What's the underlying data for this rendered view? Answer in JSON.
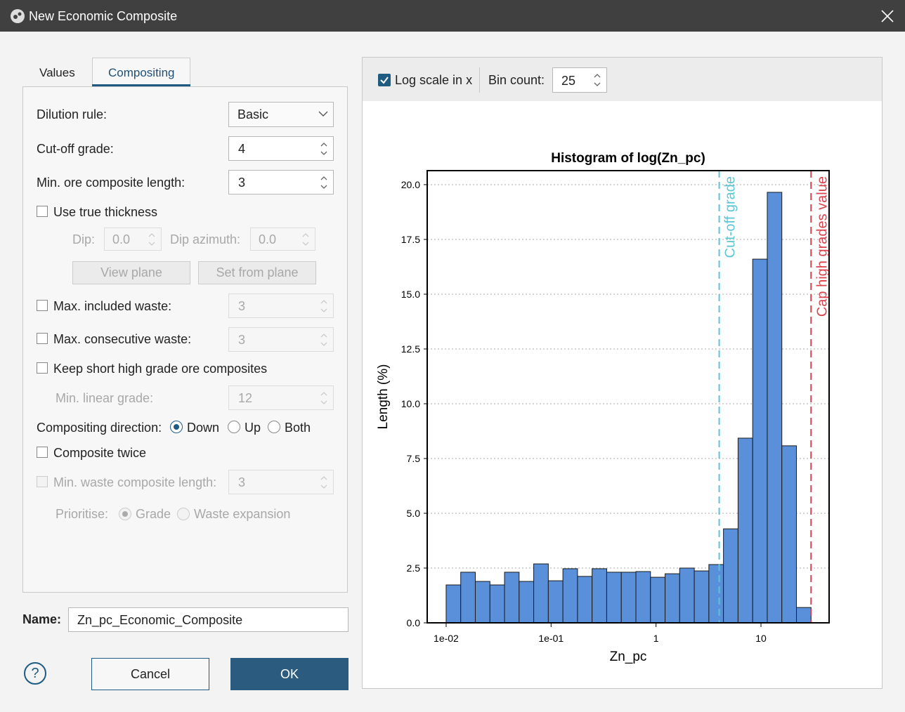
{
  "window": {
    "title": "New Economic Composite"
  },
  "tabs": [
    "Values",
    "Compositing"
  ],
  "form": {
    "dilution_rule": {
      "label": "Dilution rule:",
      "value": "Basic"
    },
    "cutoff_grade": {
      "label": "Cut-off grade:",
      "value": 4
    },
    "min_ore_length": {
      "label": "Min. ore composite length:",
      "value": 3
    },
    "use_true_thickness": {
      "label": "Use true thickness"
    },
    "dip": {
      "label": "Dip:",
      "value": "0.0"
    },
    "dip_azimuth": {
      "label": "Dip azimuth:",
      "value": "0.0"
    },
    "view_plane": "View plane",
    "set_from_plane": "Set from plane",
    "max_included_waste": {
      "label": "Max. included waste:",
      "value": 3
    },
    "max_consecutive_waste": {
      "label": "Max. consecutive waste:",
      "value": 3
    },
    "keep_short": {
      "label": "Keep short high grade ore composites"
    },
    "min_linear_grade": {
      "label": "Min. linear grade:",
      "value": 12
    },
    "direction": {
      "label": "Compositing direction:",
      "options": [
        "Down",
        "Up",
        "Both"
      ]
    },
    "composite_twice": {
      "label": "Composite twice"
    },
    "min_waste_length": {
      "label": "Min. waste composite length:",
      "value": 3
    },
    "prioritise": {
      "label": "Prioritise:",
      "options": [
        "Grade",
        "Waste expansion"
      ]
    }
  },
  "name": {
    "label": "Name:",
    "value": "Zn_pc_Economic_Composite"
  },
  "buttons": {
    "help": "?",
    "cancel": "Cancel",
    "ok": "OK"
  },
  "toolbar": {
    "log_scale": "Log scale in x",
    "bin_count_label": "Bin count:",
    "bin_count": 25
  },
  "chart_data": {
    "type": "histogram",
    "title": "Histogram of log(Zn_pc)",
    "x_label": "Zn_pc",
    "y_label": "Length (%)",
    "log_x": true,
    "bins": [
      0.01,
      0.01377,
      0.01897,
      0.02614,
      0.036,
      0.04959,
      0.0683,
      0.0941,
      0.1296,
      0.1786,
      0.2459,
      0.3388,
      0.4667,
      0.6429,
      0.8855,
      1.22,
      1.68,
      2.314,
      3.188,
      4.391,
      6.049,
      8.333,
      11.48,
      15.81,
      21.78,
      30
    ],
    "values": [
      1.73,
      2.31,
      1.89,
      1.73,
      2.31,
      1.89,
      2.69,
      1.92,
      2.47,
      2.12,
      2.47,
      2.31,
      2.31,
      2.34,
      2.08,
      2.24,
      2.5,
      2.37,
      2.66,
      4.29,
      8.43,
      16.6,
      19.65,
      8.08,
      0.7
    ],
    "color": "#5a8fd9",
    "xlim": [
      0.0066,
      44.6
    ],
    "ylim": [
      0,
      20.64
    ],
    "xticks": [
      {
        "value": 0.01,
        "label": "1e-02"
      },
      {
        "value": 0.1,
        "label": "1e-01"
      },
      1,
      10
    ],
    "yticks": [
      {
        "value": 0,
        "label": "0.0"
      },
      2.5,
      {
        "value": 5,
        "label": "5.0"
      },
      7.5,
      {
        "value": 10,
        "label": "10.0"
      },
      12.5,
      {
        "value": 15,
        "label": "15.0"
      },
      17.5,
      {
        "value": 20,
        "label": "20.0"
      }
    ],
    "grid": true,
    "lines": [
      {
        "value": 4,
        "label": "Cut-off grade",
        "color": "#5cc6d6"
      },
      {
        "value": 30,
        "label": "Cap high grades value",
        "color": "#d9434e"
      }
    ]
  }
}
